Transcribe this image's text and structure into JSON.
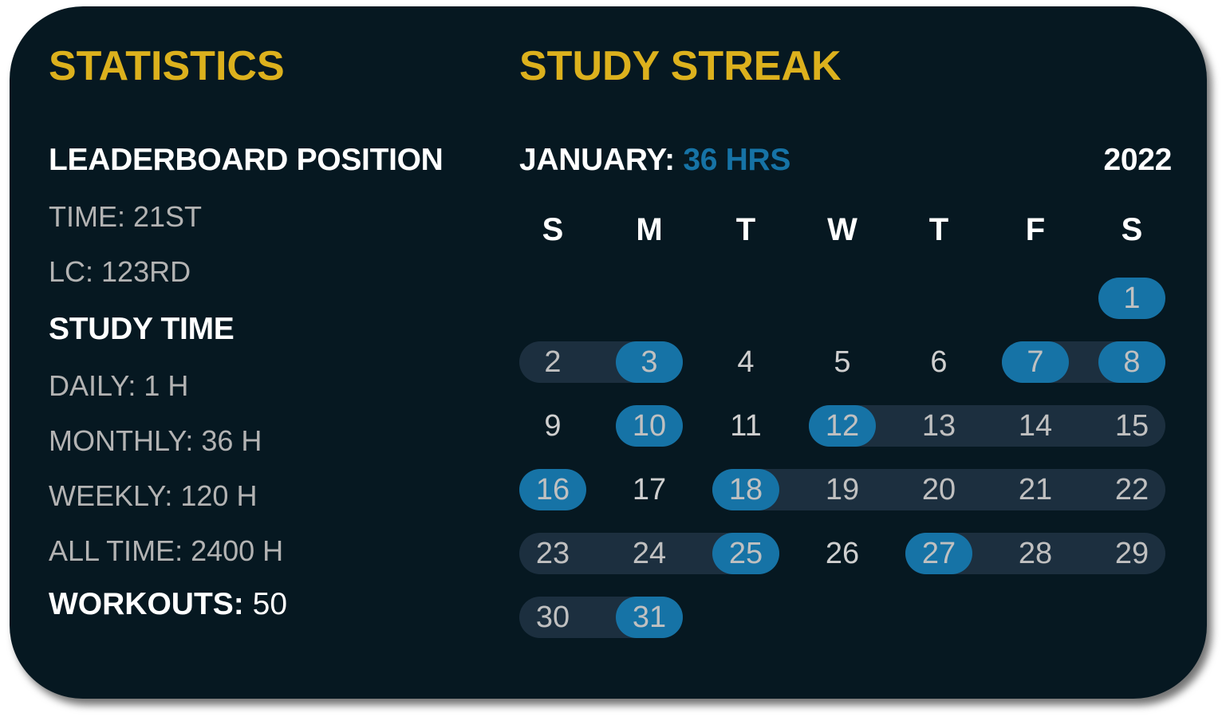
{
  "colors": {
    "background": "#061821",
    "accent_yellow": "#dcb11d",
    "accent_blue": "#1673a6",
    "streak_bar": "#1c2f3f",
    "muted_text": "#b3b3b3"
  },
  "statistics": {
    "title": "STATISTICS",
    "leaderboard_heading": "LEADERBOARD POSITION",
    "time": "TIME: 21ST",
    "lc": "LC: 123RD",
    "study_time_heading": "STUDY TIME",
    "daily": "DAILY: 1 H",
    "monthly": "MONTHLY: 36 H",
    "weekly": "WEEKLY: 120 H",
    "all_time": "ALL TIME: 2400 H",
    "workouts_label": "WORKOUTS:",
    "workouts_value": " 50"
  },
  "streak": {
    "title": "STUDY STREAK",
    "month_label": "JANUARY:",
    "month_hours": " 36 HRS",
    "year": "2022",
    "weekdays": [
      "S",
      "M",
      "T",
      "W",
      "T",
      "F",
      "S"
    ],
    "first_weekday_index": 6,
    "days": [
      {
        "d": "1",
        "s": "active"
      },
      {
        "d": "2",
        "s": "streak"
      },
      {
        "d": "3",
        "s": "active"
      },
      {
        "d": "4",
        "s": "none"
      },
      {
        "d": "5",
        "s": "none"
      },
      {
        "d": "6",
        "s": "none"
      },
      {
        "d": "7",
        "s": "active"
      },
      {
        "d": "8",
        "s": "active"
      },
      {
        "d": "9",
        "s": "none"
      },
      {
        "d": "10",
        "s": "active"
      },
      {
        "d": "11",
        "s": "none"
      },
      {
        "d": "12",
        "s": "active"
      },
      {
        "d": "13",
        "s": "streak"
      },
      {
        "d": "14",
        "s": "streak"
      },
      {
        "d": "15",
        "s": "streak"
      },
      {
        "d": "16",
        "s": "active"
      },
      {
        "d": "17",
        "s": "none"
      },
      {
        "d": "18",
        "s": "active"
      },
      {
        "d": "19",
        "s": "streak"
      },
      {
        "d": "20",
        "s": "streak"
      },
      {
        "d": "21",
        "s": "streak"
      },
      {
        "d": "22",
        "s": "streak"
      },
      {
        "d": "23",
        "s": "streak"
      },
      {
        "d": "24",
        "s": "streak"
      },
      {
        "d": "25",
        "s": "active"
      },
      {
        "d": "26",
        "s": "none"
      },
      {
        "d": "27",
        "s": "active"
      },
      {
        "d": "28",
        "s": "streak"
      },
      {
        "d": "29",
        "s": "streak"
      },
      {
        "d": "30",
        "s": "streak"
      },
      {
        "d": "31",
        "s": "active"
      }
    ]
  }
}
